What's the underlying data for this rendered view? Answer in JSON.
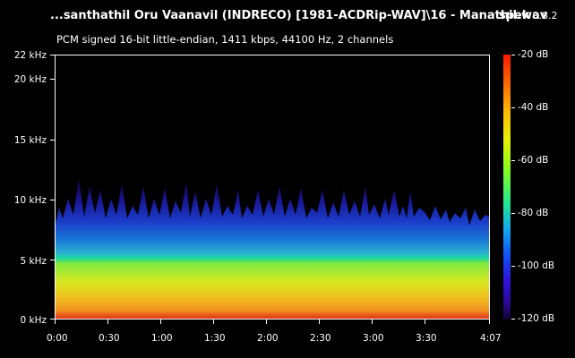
{
  "header": {
    "title": "...santhathil Oru Vaanavil (INDRECO) [1981-ACDRip-WAV]\\16 - Manathil.wav",
    "app_name": "spek",
    "app_version": "0.8.2",
    "audio_info": "PCM signed 16-bit little-endian, 1411 kbps, 44100 Hz, 2 channels"
  },
  "freq_axis": {
    "labels": [
      "22 kHz",
      "20 kHz",
      "15 kHz",
      "10 kHz",
      "5 kHz",
      "0 kHz"
    ]
  },
  "time_axis": {
    "labels": [
      "0:00",
      "0:30",
      "1:00",
      "1:30",
      "2:00",
      "2:30",
      "3:00",
      "3:30",
      "4:07"
    ]
  },
  "db_scale": {
    "labels": [
      "-20 dB",
      "-40 dB",
      "-60 dB",
      "-80 dB",
      "-100 dB",
      "-120 dB"
    ]
  },
  "colors": {
    "background": "#000000",
    "text": "#ffffff"
  }
}
